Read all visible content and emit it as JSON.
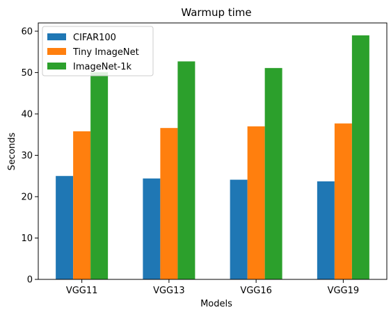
{
  "chart_data": {
    "type": "bar",
    "title": "Warmup time",
    "xlabel": "Models",
    "ylabel": "Seconds",
    "categories": [
      "VGG11",
      "VGG13",
      "VGG16",
      "VGG19"
    ],
    "ylim": [
      0,
      62
    ],
    "yticks": [
      0,
      10,
      20,
      30,
      40,
      50,
      60
    ],
    "grid": false,
    "legend_position": "top-left",
    "series": [
      {
        "name": "CIFAR100",
        "color": "#1f77b4",
        "values": [
          25.0,
          24.4,
          24.1,
          23.7
        ]
      },
      {
        "name": "Tiny ImageNet",
        "color": "#ff7f0e",
        "values": [
          35.8,
          36.6,
          37.0,
          37.7
        ]
      },
      {
        "name": "ImageNet-1k",
        "color": "#2ca02c",
        "values": [
          50.1,
          52.7,
          51.1,
          59.0
        ]
      }
    ]
  }
}
